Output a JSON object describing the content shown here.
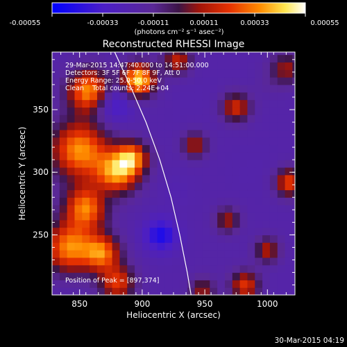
{
  "chart_data": {
    "type": "heatmap",
    "title": "Reconstructed RHESSI Image",
    "xlabel": "Heliocentric X (arcsec)",
    "ylabel": "Heliocentric Y (arcsec)",
    "xlim": [
      828,
      1022
    ],
    "ylim": [
      202,
      396
    ],
    "x_ticks": [
      850,
      900,
      950,
      1000
    ],
    "y_ticks": [
      250,
      300,
      350
    ],
    "colorbar": {
      "min": -0.00055,
      "max": 0.00055,
      "tick_values": [
        -0.00055,
        -0.00033,
        -0.00011,
        0.00011,
        0.00033,
        0.00055
      ],
      "tick_labels": [
        "-0.00055",
        "-0.00033",
        "-0.00011",
        "0.00011",
        "0.00033",
        "0.00055"
      ],
      "unit_label": "(photons cm⁻² s⁻¹ asec⁻²)"
    },
    "info_lines": [
      "29-Mar-2015 14:47:40.000 to 14:51:00.000",
      "Detectors: 3F 5F 6F 7F 8F 9F, Att 0",
      "Energy Range: 25.0-50.0 keV",
      "Clean    Total counts: 2.24E+04"
    ],
    "peak_label": "Position of Peak = [897,374]",
    "peak_position": [
      897,
      374
    ],
    "timestamp": "30-Mar-2015 04:19",
    "limb_curve": [
      [
        878,
        396
      ],
      [
        890,
        370
      ],
      [
        903,
        340
      ],
      [
        914,
        310
      ],
      [
        923,
        280
      ],
      [
        930,
        250
      ],
      [
        936,
        220
      ],
      [
        939,
        202
      ]
    ],
    "blobs": [
      {
        "x": 897,
        "y": 374,
        "v": 0.00055,
        "s": 9
      },
      {
        "x": 858,
        "y": 365,
        "v": 0.00045,
        "s": 12
      },
      {
        "x": 850,
        "y": 318,
        "v": 0.00042,
        "s": 16
      },
      {
        "x": 880,
        "y": 300,
        "v": 0.0004,
        "s": 12
      },
      {
        "x": 892,
        "y": 312,
        "v": 0.00032,
        "s": 9
      },
      {
        "x": 855,
        "y": 272,
        "v": 0.00038,
        "s": 12
      },
      {
        "x": 842,
        "y": 240,
        "v": 0.0004,
        "s": 14
      },
      {
        "x": 868,
        "y": 236,
        "v": 0.00033,
        "s": 10
      },
      {
        "x": 880,
        "y": 212,
        "v": 0.00025,
        "s": 10
      },
      {
        "x": 928,
        "y": 390,
        "v": 0.00018,
        "s": 8
      },
      {
        "x": 975,
        "y": 352,
        "v": 0.00022,
        "s": 8
      },
      {
        "x": 942,
        "y": 322,
        "v": 0.00015,
        "s": 7
      },
      {
        "x": 1018,
        "y": 292,
        "v": 0.00028,
        "s": 8
      },
      {
        "x": 1015,
        "y": 383,
        "v": 0.00012,
        "s": 9
      },
      {
        "x": 968,
        "y": 262,
        "v": 0.00013,
        "s": 7
      },
      {
        "x": 1000,
        "y": 238,
        "v": 0.00016,
        "s": 7
      },
      {
        "x": 982,
        "y": 210,
        "v": 0.00025,
        "s": 8
      },
      {
        "x": 948,
        "y": 206,
        "v": 0.00012,
        "s": 7
      },
      {
        "x": 875,
        "y": 356,
        "v": -0.00045,
        "s": 11
      },
      {
        "x": 915,
        "y": 250,
        "v": -0.0005,
        "s": 9
      },
      {
        "x": 870,
        "y": 280,
        "v": -0.00025,
        "s": 8
      },
      {
        "x": 940,
        "y": 360,
        "v": -0.0002,
        "s": 12
      },
      {
        "x": 990,
        "y": 300,
        "v": -0.0002,
        "s": 12
      },
      {
        "x": 925,
        "y": 285,
        "v": -0.00022,
        "s": 10
      },
      {
        "x": 1000,
        "y": 370,
        "v": -0.00015,
        "s": 8
      },
      {
        "x": 960,
        "y": 230,
        "v": -0.00018,
        "s": 10
      }
    ]
  }
}
